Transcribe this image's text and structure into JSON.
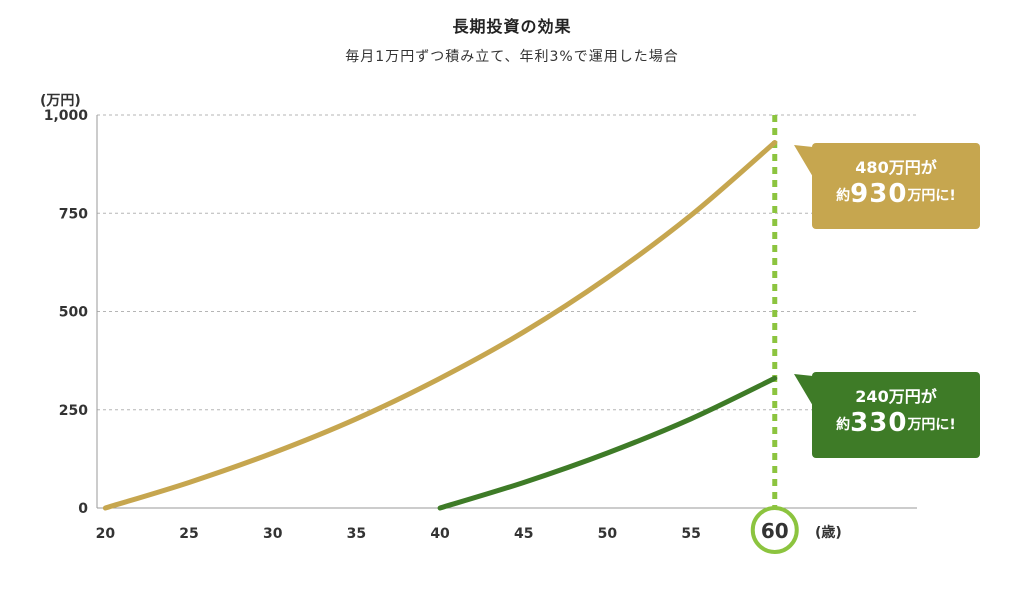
{
  "chart_data": {
    "type": "line",
    "title": "長期投資の効果",
    "subtitle": "毎月1万円ずつ積み立て、年利3%で運用した場合",
    "ylabel": "(万円)",
    "xlabel": "(歳)",
    "xlim": [
      19.5,
      68.5
    ],
    "ylim": [
      0,
      1000
    ],
    "x_ticks": [
      "20",
      "25",
      "30",
      "35",
      "40",
      "45",
      "50",
      "55",
      "60"
    ],
    "y_ticks": [
      "0",
      "250",
      "500",
      "750",
      "1,000"
    ],
    "grid": true,
    "highlight_x": "60",
    "series": [
      {
        "color": "#c6a64f",
        "x": [
          20,
          25,
          30,
          35,
          40,
          45,
          50,
          55,
          60
        ],
        "y": [
          0,
          65,
          140,
          227,
          330,
          448,
          586,
          745,
          930
        ]
      },
      {
        "color": "#3e7b27",
        "x": [
          40,
          45,
          50,
          55,
          60
        ],
        "y": [
          0,
          65,
          140,
          227,
          330
        ]
      }
    ],
    "annotations": [
      {
        "line1": "480万円が",
        "prefix": "約",
        "amount": "930",
        "suffix": "万円に!",
        "color": "#c6a64f"
      },
      {
        "line1": "240万円が",
        "prefix": "約",
        "amount": "330",
        "suffix": "万円に!",
        "color": "#3e7b27"
      }
    ],
    "colors": {
      "highlight": "#8cc43f",
      "axis": "#9a9a9a",
      "grid": "#b5b5b5"
    }
  }
}
